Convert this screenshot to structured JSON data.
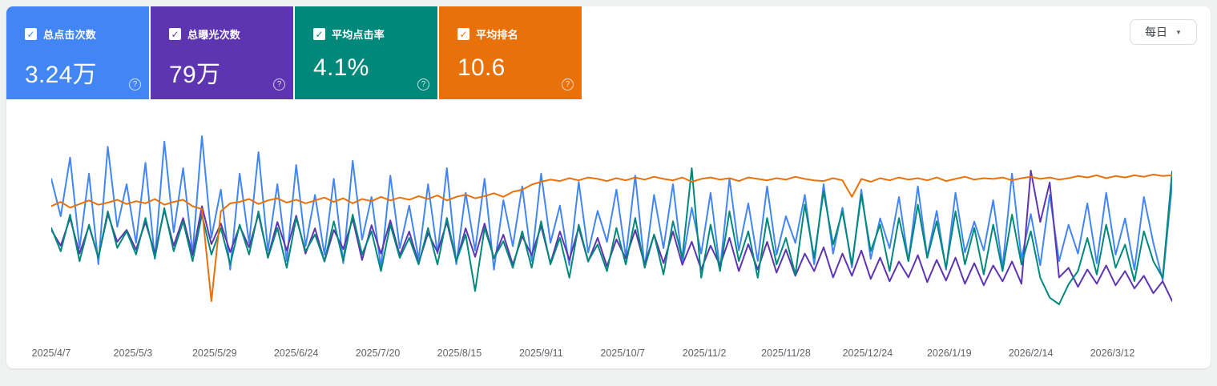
{
  "toolbar": {
    "granularity_label": "每日",
    "chevron_icon": "▼"
  },
  "cards": [
    {
      "id": "clicks",
      "label": "总点击次数",
      "value": "3.24万",
      "color": "#4285f4",
      "checked": true,
      "help_icon": "?"
    },
    {
      "id": "impressions",
      "label": "总曝光次数",
      "value": "79万",
      "color": "#5e35b1",
      "checked": true,
      "help_icon": "?"
    },
    {
      "id": "ctr",
      "label": "平均点击率",
      "value": "4.1%",
      "color": "#00897b",
      "checked": true,
      "help_icon": "?"
    },
    {
      "id": "position",
      "label": "平均排名",
      "value": "10.6",
      "color": "#e8710a",
      "checked": true,
      "help_icon": "?"
    }
  ],
  "chart_data": {
    "type": "line",
    "title": "",
    "legend": "hidden",
    "grid": false,
    "x_label_interval_days": 26,
    "x_domain_days": 357,
    "x_labels": [
      "2025/4/7",
      "2025/5/3",
      "2025/5/29",
      "2025/6/24",
      "2025/7/20",
      "2025/8/15",
      "2025/9/11",
      "2025/10/7",
      "2025/11/2",
      "2025/11/28",
      "2025/12/24",
      "2026/1/19",
      "2026/2/14",
      "2026/3/12"
    ],
    "summary": {
      "total_clicks": "3.24万",
      "total_impressions": "79万",
      "avg_ctr": "4.1%",
      "avg_position": "10.6"
    },
    "series": [
      {
        "name": "总点击次数",
        "unit": "clicks/day",
        "color": "#4285f4",
        "inverted_axis": false,
        "values": [
          155,
          120,
          175,
          90,
          160,
          75,
          185,
          110,
          150,
          95,
          170,
          80,
          190,
          105,
          165,
          85,
          195,
          100,
          145,
          70,
          160,
          95,
          180,
          88,
          150,
          78,
          168,
          92,
          140,
          84,
          155,
          76,
          172,
          98,
          138,
          72,
          158,
          90,
          130,
          80,
          150,
          85,
          165,
          75,
          142,
          88,
          155,
          70,
          135,
          92,
          148,
          78,
          160,
          95,
          130,
          74,
          152,
          86,
          125,
          96,
          145,
          82,
          158,
          72,
          140,
          90,
          150,
          76,
          128,
          85,
          142,
          70,
          155,
          88,
          132,
          78,
          148,
          84,
          120,
          95,
          140,
          75,
          150,
          85,
          128,
          72,
          145,
          80,
          118,
          90,
          138,
          78,
          148,
          82,
          125,
          70,
          142,
          86,
          115,
          88,
          135,
          72,
          160,
          80,
          122,
          74,
          140,
          78,
          112,
          85,
          132,
          76,
          142,
          84,
          118,
          70,
          138,
          95,
          60,
          150
        ]
      },
      {
        "name": "总曝光次数",
        "unit": "impressions/day",
        "color": "#5e35b1",
        "inverted_axis": false,
        "values": [
          2300,
          2100,
          2450,
          2000,
          2350,
          1950,
          2500,
          2150,
          2300,
          2050,
          2400,
          2000,
          2550,
          2100,
          2450,
          1980,
          2600,
          2120,
          2380,
          2020,
          2350,
          2080,
          2500,
          1960,
          2400,
          2040,
          2480,
          2000,
          2320,
          1900,
          2300,
          2060,
          2440,
          1920,
          2360,
          2000,
          2420,
          1980,
          2280,
          1880,
          2260,
          2020,
          2400,
          1900,
          2320,
          1960,
          2380,
          1940,
          2240,
          1860,
          2220,
          1980,
          2350,
          1880,
          2280,
          1920,
          2330,
          1900,
          2200,
          1840,
          2180,
          1940,
          2300,
          1860,
          2240,
          1880,
          2280,
          1860,
          2150,
          1800,
          2100,
          1850,
          2200,
          1780,
          2120,
          1800,
          2150,
          1760,
          2050,
          1720,
          2000,
          1780,
          2080,
          1700,
          2000,
          1720,
          2040,
          1680,
          1950,
          1650,
          1900,
          1700,
          1980,
          1640,
          1920,
          1660,
          1950,
          1620,
          1880,
          1600,
          1850,
          1650,
          1900,
          1620,
          3050,
          2400,
          2900,
          1700,
          1820,
          1580,
          1800,
          1620,
          1850,
          1600,
          1780,
          1560,
          1720,
          1500,
          1650,
          1400
        ]
      },
      {
        "name": "平均点击率",
        "unit": "%",
        "color": "#00897b",
        "inverted_axis": false,
        "values": [
          4.5,
          3.8,
          4.9,
          3.5,
          4.6,
          3.6,
          5.0,
          3.9,
          4.4,
          3.7,
          4.8,
          3.6,
          5.1,
          3.8,
          4.7,
          3.5,
          4.9,
          3.7,
          4.5,
          3.4,
          4.6,
          3.7,
          5.0,
          3.6,
          4.5,
          3.3,
          4.8,
          3.8,
          4.3,
          3.5,
          4.7,
          3.5,
          4.9,
          3.7,
          4.4,
          3.2,
          4.6,
          3.6,
          4.2,
          3.4,
          4.5,
          3.4,
          4.8,
          3.5,
          4.3,
          2.6,
          4.5,
          3.6,
          4.1,
          3.3,
          4.4,
          3.3,
          4.7,
          3.4,
          4.2,
          3.0,
          4.6,
          3.5,
          4.0,
          3.2,
          4.5,
          3.4,
          4.8,
          3.3,
          4.3,
          3.1,
          4.7,
          3.6,
          6.3,
          3.0,
          4.6,
          3.2,
          5.0,
          3.5,
          4.4,
          3.0,
          4.8,
          3.4,
          4.2,
          3.1,
          5.2,
          3.6,
          5.6,
          4.0,
          5.0,
          3.4,
          5.5,
          3.8,
          4.6,
          3.2,
          4.8,
          3.5,
          5.2,
          3.6,
          4.7,
          3.3,
          5.0,
          3.4,
          4.5,
          3.1,
          4.6,
          3.2,
          4.9,
          3.4,
          4.4,
          3.0,
          2.4,
          2.2,
          2.8,
          3.2,
          4.2,
          3.1,
          4.6,
          3.3,
          4.0,
          2.9,
          4.4,
          3.5,
          3.0,
          6.2
        ]
      },
      {
        "name": "平均排名",
        "unit": "position",
        "color": "#e8710a",
        "inverted_axis": true,
        "values": [
          11.8,
          11.2,
          12.0,
          11.5,
          11.0,
          11.6,
          11.3,
          10.9,
          11.5,
          11.1,
          11.4,
          10.8,
          11.6,
          11.2,
          10.9,
          11.8,
          12.2,
          25.0,
          12.5,
          11.4,
          11.2,
          10.8,
          11.5,
          11.0,
          10.7,
          11.3,
          10.9,
          11.4,
          11.0,
          10.6,
          11.2,
          10.7,
          11.4,
          10.8,
          11.1,
          10.5,
          11.0,
          10.6,
          10.9,
          10.4,
          10.8,
          10.3,
          11.0,
          10.5,
          10.2,
          10.7,
          10.4,
          10.0,
          10.5,
          9.8,
          9.5,
          8.8,
          8.4,
          8.1,
          8.3,
          7.9,
          8.2,
          7.8,
          8.0,
          8.3,
          7.9,
          8.2,
          7.8,
          8.1,
          7.7,
          8.0,
          8.2,
          7.8,
          8.4,
          8.0,
          7.8,
          8.1,
          7.9,
          8.3,
          7.8,
          8.0,
          8.2,
          7.9,
          8.1,
          7.7,
          8.0,
          8.2,
          8.3,
          7.9,
          8.2,
          10.5,
          8.0,
          8.4,
          7.9,
          8.2,
          7.8,
          8.1,
          7.9,
          8.2,
          7.8,
          8.3,
          8.0,
          7.7,
          8.1,
          7.9,
          8.0,
          7.8,
          8.2,
          7.9,
          7.7,
          8.0,
          7.8,
          8.1,
          7.9,
          7.6,
          7.8,
          7.5,
          7.9,
          7.6,
          7.8,
          7.5,
          7.7,
          7.4,
          7.6,
          7.5
        ]
      }
    ]
  }
}
